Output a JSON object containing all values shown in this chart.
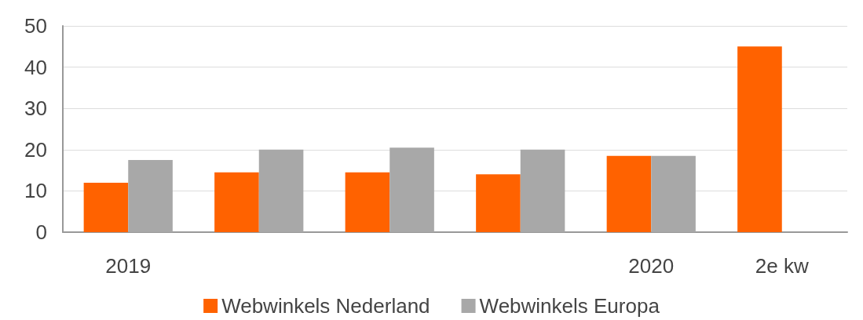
{
  "chart_data": {
    "type": "bar",
    "categories": [
      "2019",
      null,
      null,
      null,
      "2020",
      "2e kw"
    ],
    "series": [
      {
        "name": "Webwinkels Nederland",
        "color": "#ff6200",
        "values": [
          12,
          14.5,
          14.5,
          14,
          18.5,
          45
        ]
      },
      {
        "name": "Webwinkels Europa",
        "color": "#a8a8a8",
        "values": [
          17.5,
          20,
          20.5,
          20,
          18.5,
          null
        ]
      }
    ],
    "ylim": [
      0,
      50
    ],
    "yticks": [
      0,
      10,
      20,
      30,
      40,
      50
    ],
    "grid": "y",
    "legend": "bottom"
  }
}
